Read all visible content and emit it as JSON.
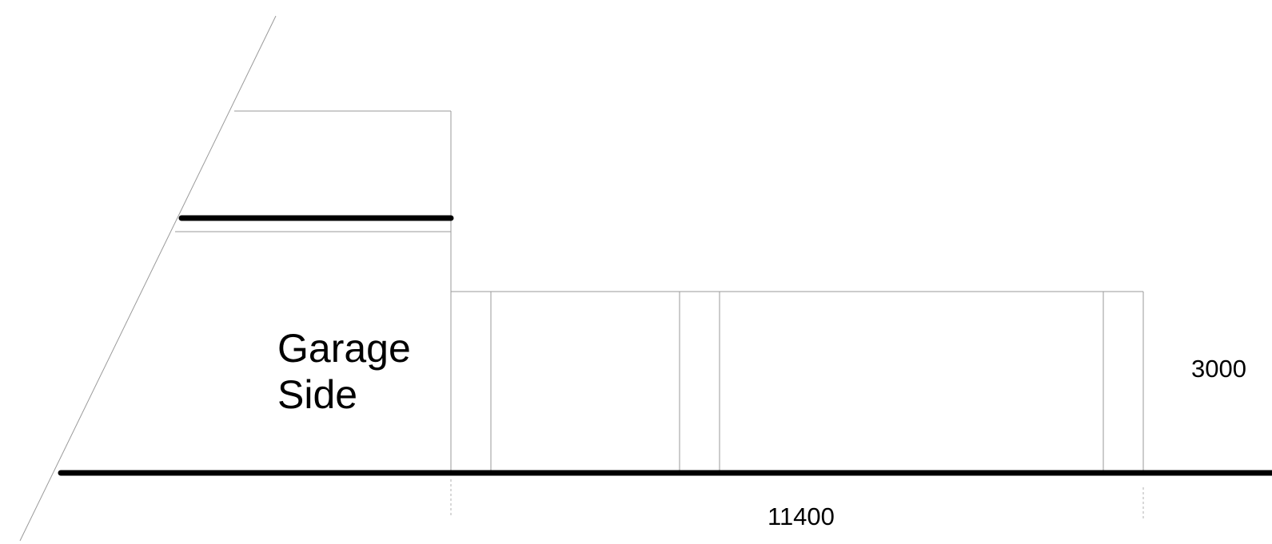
{
  "labels": {
    "garage_line1": "Garage",
    "garage_line2": "Side",
    "height_dimension": "3000",
    "length_dimension": "11400"
  }
}
